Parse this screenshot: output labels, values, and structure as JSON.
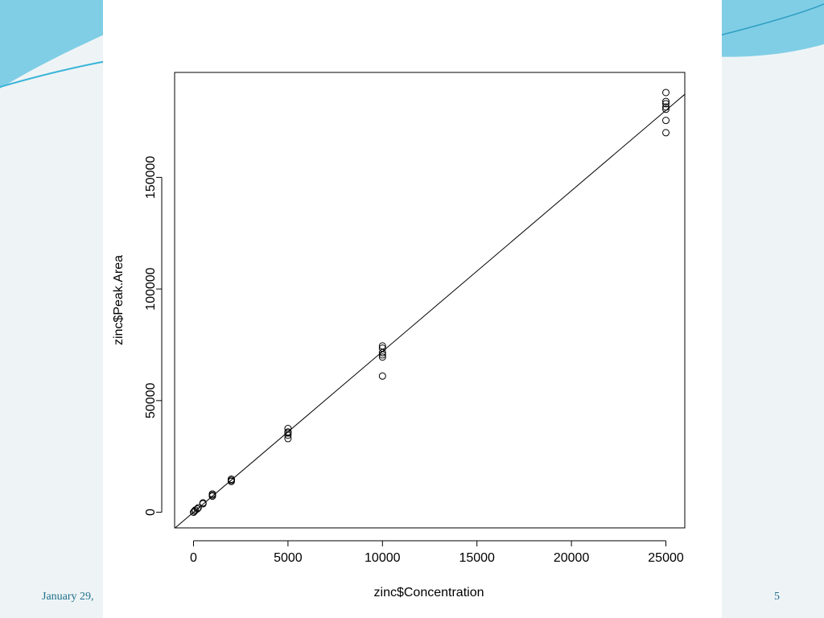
{
  "slide": {
    "footer_date": "January 29,",
    "page_number": "5",
    "accent_color": "#3ab4d9"
  },
  "chart_data": {
    "type": "scatter",
    "xlabel": "zinc$Concentration",
    "ylabel": "zinc$Peak.Area",
    "xlim": [
      -1000,
      26000
    ],
    "ylim": [
      -7000,
      197000
    ],
    "x_ticks": [
      0,
      5000,
      10000,
      15000,
      20000,
      25000
    ],
    "x_tick_labels": [
      "0",
      "5000",
      "10000",
      "15000",
      "20000",
      "25000"
    ],
    "y_ticks": [
      0,
      50000,
      100000,
      150000
    ],
    "y_tick_labels": [
      "0",
      "50000",
      "100000",
      "150000"
    ],
    "grid": false,
    "points": [
      {
        "x": 0,
        "y": 0
      },
      {
        "x": 50,
        "y": 500
      },
      {
        "x": 100,
        "y": 1000
      },
      {
        "x": 200,
        "y": 1500
      },
      {
        "x": 250,
        "y": 2000
      },
      {
        "x": 500,
        "y": 3800
      },
      {
        "x": 500,
        "y": 4200
      },
      {
        "x": 1000,
        "y": 7200
      },
      {
        "x": 1000,
        "y": 7700
      },
      {
        "x": 1000,
        "y": 8200
      },
      {
        "x": 2000,
        "y": 13800
      },
      {
        "x": 2000,
        "y": 14300
      },
      {
        "x": 2000,
        "y": 14800
      },
      {
        "x": 5000,
        "y": 33000
      },
      {
        "x": 5000,
        "y": 34500
      },
      {
        "x": 5000,
        "y": 35500
      },
      {
        "x": 5000,
        "y": 36000
      },
      {
        "x": 5000,
        "y": 37500
      },
      {
        "x": 10000,
        "y": 61000
      },
      {
        "x": 10000,
        "y": 69500
      },
      {
        "x": 10000,
        "y": 70500
      },
      {
        "x": 10000,
        "y": 71500
      },
      {
        "x": 10000,
        "y": 73500
      },
      {
        "x": 10000,
        "y": 74500
      },
      {
        "x": 25000,
        "y": 170000
      },
      {
        "x": 25000,
        "y": 175500
      },
      {
        "x": 25000,
        "y": 180500
      },
      {
        "x": 25000,
        "y": 181500
      },
      {
        "x": 25000,
        "y": 183000
      },
      {
        "x": 25000,
        "y": 184000
      },
      {
        "x": 25000,
        "y": 188000
      }
    ],
    "fit_line": {
      "slope": 7.2,
      "intercept": 0
    }
  }
}
